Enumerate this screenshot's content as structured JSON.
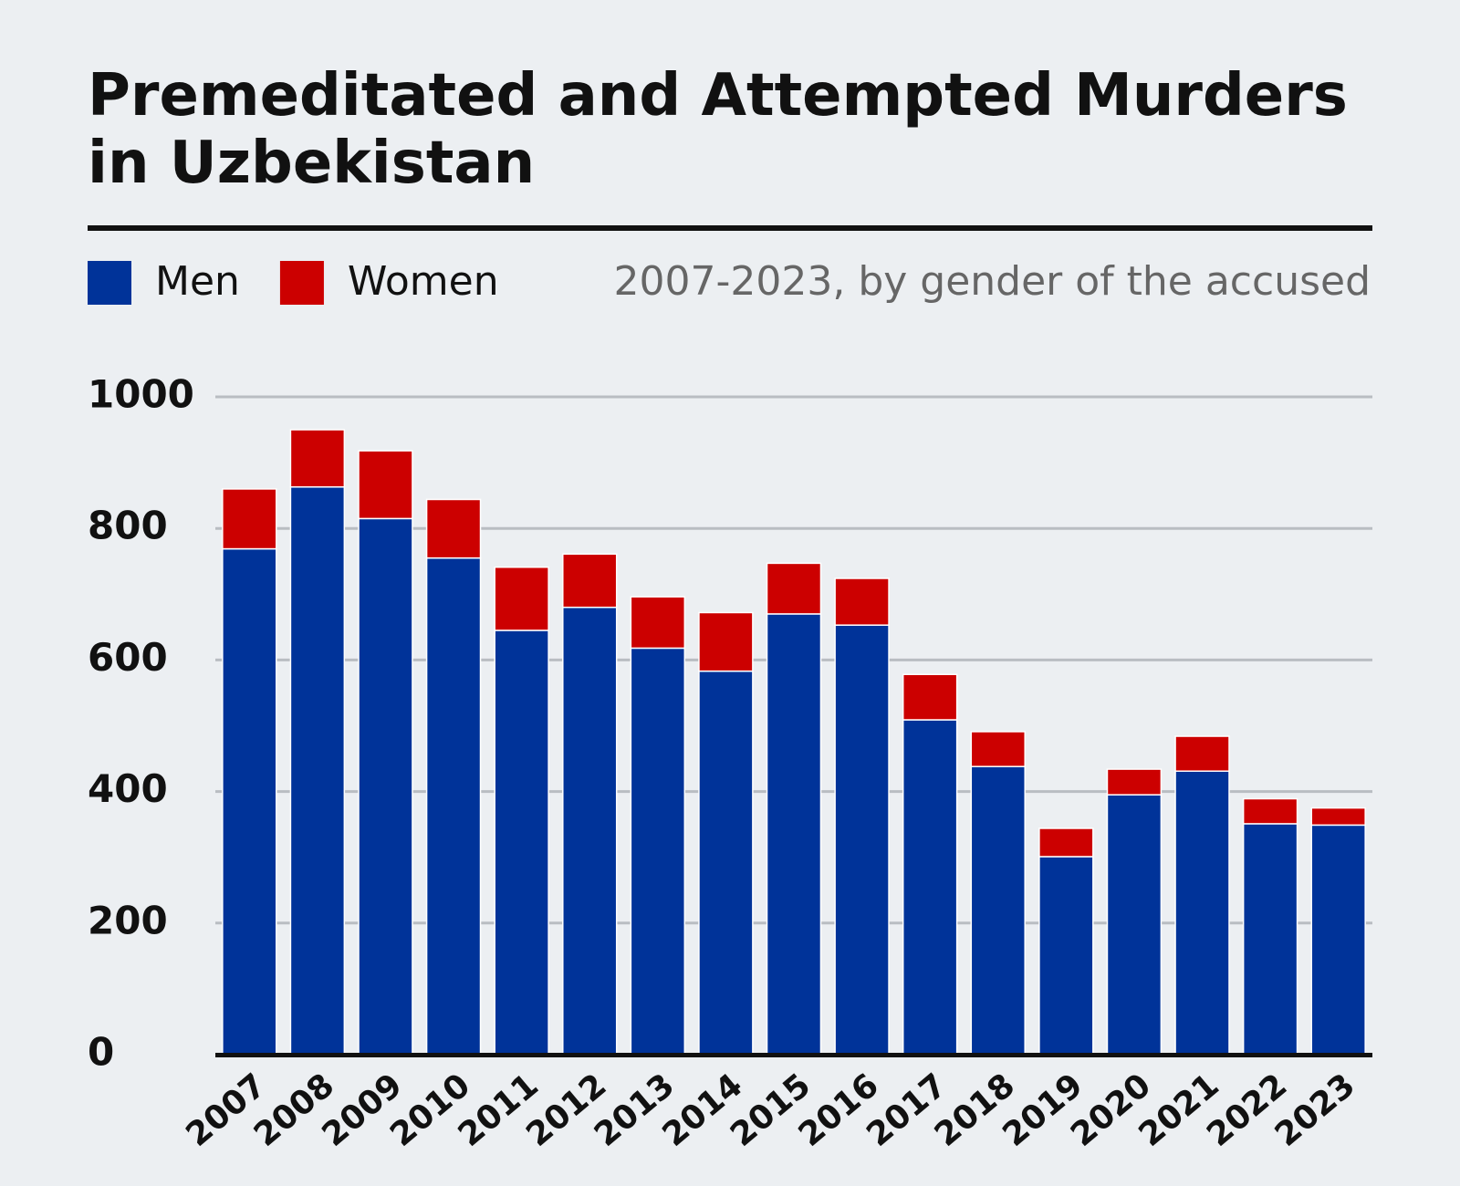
{
  "chart_data": {
    "type": "stacked-bar",
    "title": "Premeditated and Attempted Murders in Uzbekistan",
    "subtitle": "2007-2023, by gender of the accused",
    "categories": [
      "2007",
      "2008",
      "2009",
      "2010",
      "2011",
      "2012",
      "2013",
      "2014",
      "2015",
      "2016",
      "2017",
      "2018",
      "2019",
      "2020",
      "2021",
      "2022",
      "2023"
    ],
    "series": [
      {
        "name": "Men",
        "color": "#003399",
        "values": [
          769,
          863,
          815,
          755,
          645,
          680,
          618,
          583,
          670,
          653,
          509,
          438,
          301,
          395,
          431,
          351,
          349
        ]
      },
      {
        "name": "Women",
        "color": "#cc0000",
        "values": [
          91,
          87,
          103,
          89,
          96,
          81,
          78,
          89,
          77,
          71,
          69,
          53,
          43,
          39,
          53,
          38,
          26
        ]
      }
    ],
    "ylim": [
      0,
      1000
    ],
    "yticks": [
      0,
      200,
      400,
      600,
      800,
      1000
    ],
    "grid": true
  }
}
